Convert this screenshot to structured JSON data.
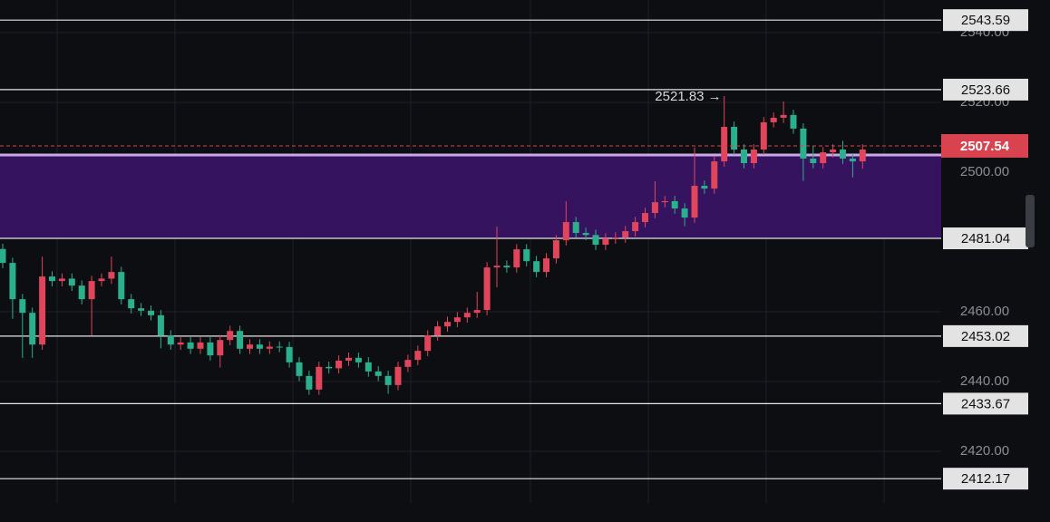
{
  "chart_data": {
    "type": "candlestick",
    "ylim": [
      2405.2,
      2549.35
    ],
    "yticks": [
      {
        "value": 2420,
        "label": "2420.00"
      },
      {
        "value": 2440,
        "label": "2440.00"
      },
      {
        "value": 2460,
        "label": "2460.00"
      },
      {
        "value": 2500,
        "label": "2500.00"
      },
      {
        "value": 2520,
        "label": "2520.00"
      },
      {
        "value": 2540,
        "label": "2540.00"
      }
    ],
    "up_color": "#e0455c",
    "down_color": "#2bb08e",
    "open": [
      2478.0,
      2474.0,
      2463.6,
      2459.7,
      2450.6,
      2470.1,
      2468.8,
      2469.5,
      2467.5,
      2463.6,
      2468.8,
      2469.5,
      2471.4,
      2463.6,
      2461.0,
      2460.3,
      2459.0,
      2453.2,
      2450.6,
      2451.2,
      2449.4,
      2451.2,
      2447.5,
      2451.9,
      2454.5,
      2449.4,
      2450.6,
      2449.4,
      2450.0,
      2449.9,
      2445.5,
      2441.6,
      2437.7,
      2444.2,
      2443.8,
      2446.0,
      2446.8,
      2445.5,
      2442.9,
      2441.6,
      2439.0,
      2444.2,
      2446.2,
      2448.8,
      2453.2,
      2455.8,
      2457.1,
      2458.4,
      2459.7,
      2460.5,
      2472.7,
      2473.2,
      2472.7,
      2477.9,
      2474.5,
      2471.4,
      2475.3,
      2480.5,
      2485.7,
      2482.6,
      2482.0,
      2479.2,
      2481.0,
      2481.3,
      2483.1,
      2485.7,
      2488.3,
      2491.4,
      2491.7,
      2489.6,
      2487.0,
      2496.1,
      2495.3,
      2503.1,
      2513.0,
      2506.5,
      2502.6,
      2506.5,
      2514.3,
      2515.6,
      2516.4,
      2512.5,
      2503.9,
      2502.6,
      2505.7,
      2506.5,
      2503.9,
      2503.1
    ],
    "high": [
      2479.5,
      2475.5,
      2465.1,
      2461.2,
      2475.8,
      2471.6,
      2471.0,
      2471.0,
      2469.0,
      2470.3,
      2471.0,
      2475.8,
      2472.9,
      2465.1,
      2462.5,
      2461.8,
      2460.5,
      2454.7,
      2452.7,
      2452.7,
      2452.7,
      2452.7,
      2453.4,
      2456.0,
      2456.0,
      2452.1,
      2452.1,
      2451.5,
      2451.5,
      2451.4,
      2447.0,
      2443.1,
      2445.7,
      2445.7,
      2447.5,
      2448.3,
      2448.3,
      2447.0,
      2444.4,
      2443.1,
      2445.7,
      2447.7,
      2450.3,
      2454.7,
      2457.3,
      2458.6,
      2459.9,
      2461.2,
      2465.7,
      2474.2,
      2484.4,
      2474.7,
      2479.4,
      2479.4,
      2476.0,
      2476.8,
      2482.0,
      2491.7,
      2487.2,
      2484.1,
      2483.5,
      2482.5,
      2482.8,
      2484.6,
      2487.2,
      2489.8,
      2497.4,
      2493.2,
      2493.2,
      2491.1,
      2507.0,
      2497.6,
      2504.6,
      2521.83,
      2514.5,
      2508.0,
      2508.0,
      2515.8,
      2517.1,
      2520.3,
      2517.9,
      2514.0,
      2507.5,
      2507.2,
      2508.0,
      2509.0,
      2505.4,
      2508.0
    ],
    "low": [
      2472.5,
      2458.0,
      2446.8,
      2446.8,
      2449.1,
      2467.3,
      2467.3,
      2466.0,
      2462.1,
      2453.2,
      2467.3,
      2468.0,
      2462.1,
      2459.5,
      2458.8,
      2457.5,
      2449.5,
      2449.1,
      2449.1,
      2447.9,
      2447.9,
      2446.0,
      2444.0,
      2450.4,
      2447.9,
      2447.9,
      2447.9,
      2447.9,
      2448.4,
      2444.0,
      2440.1,
      2436.2,
      2436.2,
      2442.3,
      2442.3,
      2444.5,
      2444.0,
      2441.4,
      2440.1,
      2436.5,
      2437.5,
      2442.7,
      2444.7,
      2447.3,
      2451.7,
      2454.3,
      2455.6,
      2456.9,
      2458.2,
      2459.0,
      2467.0,
      2471.2,
      2471.2,
      2473.0,
      2469.9,
      2469.9,
      2473.8,
      2479.0,
      2481.1,
      2480.5,
      2477.7,
      2477.7,
      2479.5,
      2479.8,
      2481.6,
      2484.2,
      2486.8,
      2489.9,
      2488.1,
      2484.5,
      2485.5,
      2493.8,
      2493.8,
      2501.6,
      2505.0,
      2501.1,
      2501.1,
      2505.0,
      2512.8,
      2514.1,
      2511.0,
      2497.5,
      2501.1,
      2501.1,
      2504.2,
      2502.4,
      2498.5,
      2501.0
    ],
    "close": [
      2474.0,
      2463.6,
      2459.7,
      2450.6,
      2470.1,
      2468.8,
      2469.5,
      2467.5,
      2463.6,
      2468.8,
      2469.5,
      2471.4,
      2463.6,
      2461.0,
      2460.3,
      2459.0,
      2453.2,
      2450.6,
      2451.2,
      2449.4,
      2451.2,
      2447.5,
      2451.9,
      2454.5,
      2449.4,
      2450.6,
      2449.4,
      2450.0,
      2449.9,
      2445.5,
      2441.6,
      2437.7,
      2444.2,
      2443.8,
      2446.0,
      2446.8,
      2445.5,
      2442.9,
      2441.6,
      2439.0,
      2444.2,
      2446.2,
      2448.8,
      2453.2,
      2455.8,
      2457.1,
      2458.4,
      2459.7,
      2460.5,
      2472.7,
      2473.2,
      2472.7,
      2477.9,
      2474.5,
      2471.4,
      2475.3,
      2480.5,
      2485.7,
      2482.6,
      2482.0,
      2479.2,
      2481.0,
      2481.3,
      2483.1,
      2485.7,
      2488.3,
      2491.4,
      2491.7,
      2489.6,
      2487.0,
      2496.1,
      2495.3,
      2503.1,
      2513.0,
      2506.5,
      2502.6,
      2506.5,
      2514.3,
      2515.6,
      2516.4,
      2512.5,
      2503.9,
      2502.6,
      2505.7,
      2506.5,
      2503.9,
      2503.1,
      2506.5
    ],
    "zone": {
      "low": 2481.04,
      "high": 2504.94,
      "color": "#36135e",
      "edge_color": "#c8a8e8"
    },
    "price_lines": [
      {
        "value": 2543.59,
        "color": "#e6e6e6"
      },
      {
        "value": 2523.66,
        "color": "#e6e6e6"
      },
      {
        "value": 2481.04,
        "color": "#e6e6e6"
      },
      {
        "value": 2453.02,
        "color": "#e6e6e6"
      },
      {
        "value": 2433.67,
        "color": "#e6e6e6"
      },
      {
        "value": 2412.17,
        "color": "#e6e6e6"
      }
    ],
    "last_price": {
      "value": 2507.54,
      "color": "#d9434f"
    },
    "annotation": {
      "text": "2521.83 →",
      "candle": 73
    }
  }
}
